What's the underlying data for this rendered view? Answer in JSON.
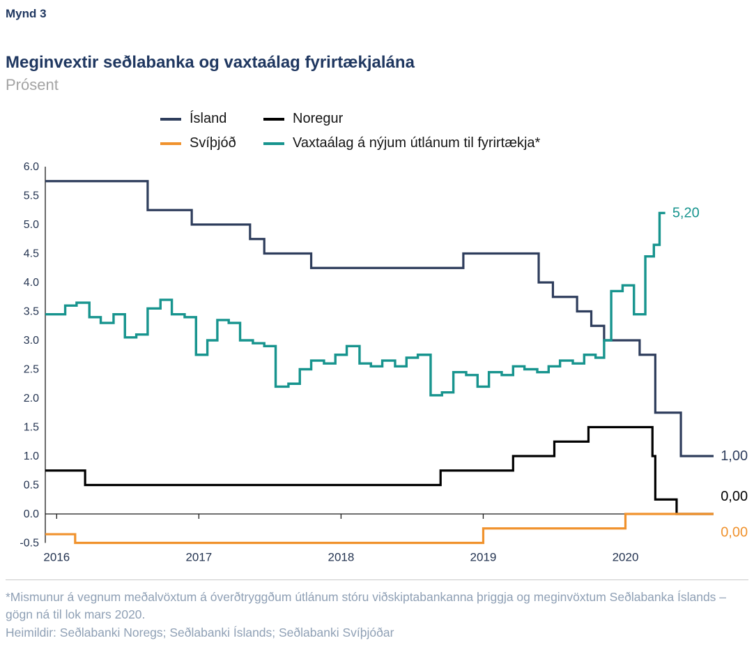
{
  "figure": {
    "number": "Mynd 3",
    "title": "Meginvextir seðlabanka og vaxtaálag fyrirtækjalána",
    "subtitle": "Prósent"
  },
  "footnote": "*Mismunur á vegnum meðalvöxtum á óverðtryggðum útlánum stóru viðskiptabankanna þriggja og meginvöxtum Seðlabanka Íslands – gögn ná til lok mars 2020.",
  "sources": "Heimildir: Seðlabanki Noregs; Seðlabanki Íslands; Seðlabanki Svíþjóðar",
  "chart_data": {
    "type": "line",
    "step": true,
    "title": "Meginvextir seðlabanka og vaxtaálag fyrirtækjalána",
    "ylabel": "Prósent",
    "xlabel": "",
    "grid": false,
    "legend_position": "top",
    "xlim": [
      2015.92,
      2020.62
    ],
    "ylim": [
      -0.5,
      6.0
    ],
    "x_ticks": [
      2016,
      2017,
      2018,
      2019,
      2020
    ],
    "y_ticks": [
      6.0,
      5.5,
      5.0,
      4.5,
      4.0,
      3.5,
      3.0,
      2.5,
      2.0,
      1.5,
      1.0,
      0.5,
      0.0,
      -0.5
    ],
    "y_tick_labels": [
      "6.0",
      "5.5",
      "5.0",
      "4.5",
      "4.0",
      "3.5",
      "3.0",
      "2.5",
      "2.0",
      "1.5",
      "1.0",
      "0.5",
      "0.0",
      "-0.5"
    ],
    "axis_color": "#1a1a1a",
    "series": [
      {
        "name": "Ísland",
        "color": "#2e3d5c",
        "width": 3.2,
        "end_label": {
          "text": "1,00",
          "x": 2020.67,
          "y": 1.0
        },
        "points": [
          [
            2015.92,
            5.75
          ],
          [
            2016.64,
            5.25
          ],
          [
            2016.95,
            5.0
          ],
          [
            2017.36,
            4.75
          ],
          [
            2017.46,
            4.5
          ],
          [
            2017.79,
            4.25
          ],
          [
            2018.86,
            4.5
          ],
          [
            2019.39,
            4.0
          ],
          [
            2019.49,
            3.75
          ],
          [
            2019.66,
            3.5
          ],
          [
            2019.76,
            3.25
          ],
          [
            2019.85,
            3.0
          ],
          [
            2020.1,
            2.75
          ],
          [
            2020.21,
            1.75
          ],
          [
            2020.39,
            1.0
          ],
          [
            2020.62,
            1.0
          ]
        ]
      },
      {
        "name": "Noregur",
        "color": "#000000",
        "width": 3.2,
        "end_label": {
          "text": "0,00",
          "x": 2020.67,
          "y": 0.3
        },
        "points": [
          [
            2015.92,
            0.75
          ],
          [
            2016.2,
            0.5
          ],
          [
            2018.7,
            0.75
          ],
          [
            2019.21,
            1.0
          ],
          [
            2019.5,
            1.25
          ],
          [
            2019.74,
            1.5
          ],
          [
            2020.19,
            1.0
          ],
          [
            2020.21,
            0.25
          ],
          [
            2020.36,
            0.0
          ],
          [
            2020.62,
            0.0
          ]
        ]
      },
      {
        "name": "Svíþjóð",
        "color": "#f0922d",
        "width": 3.2,
        "end_label": {
          "text": "0,00",
          "x": 2020.67,
          "y": -0.32
        },
        "points": [
          [
            2015.92,
            -0.35
          ],
          [
            2016.13,
            -0.5
          ],
          [
            2019.0,
            -0.25
          ],
          [
            2020.0,
            0.0
          ],
          [
            2020.62,
            0.0
          ]
        ]
      },
      {
        "name": "Vaxtaálag á nýjum útlánum til fyrirtækja*",
        "color": "#17948e",
        "width": 3.4,
        "end_label": {
          "text": "5,20",
          "x": 2020.33,
          "y": 5.2
        },
        "points": [
          [
            2015.92,
            3.45
          ],
          [
            2016.06,
            3.6
          ],
          [
            2016.14,
            3.65
          ],
          [
            2016.23,
            3.4
          ],
          [
            2016.31,
            3.3
          ],
          [
            2016.4,
            3.45
          ],
          [
            2016.48,
            3.05
          ],
          [
            2016.56,
            3.1
          ],
          [
            2016.64,
            3.55
          ],
          [
            2016.73,
            3.7
          ],
          [
            2016.81,
            3.45
          ],
          [
            2016.9,
            3.4
          ],
          [
            2016.98,
            2.75
          ],
          [
            2017.06,
            3.0
          ],
          [
            2017.13,
            3.35
          ],
          [
            2017.21,
            3.3
          ],
          [
            2017.29,
            3.0
          ],
          [
            2017.38,
            2.95
          ],
          [
            2017.46,
            2.9
          ],
          [
            2017.54,
            2.2
          ],
          [
            2017.63,
            2.25
          ],
          [
            2017.71,
            2.5
          ],
          [
            2017.79,
            2.65
          ],
          [
            2017.88,
            2.6
          ],
          [
            2017.96,
            2.75
          ],
          [
            2018.04,
            2.9
          ],
          [
            2018.13,
            2.6
          ],
          [
            2018.21,
            2.55
          ],
          [
            2018.29,
            2.65
          ],
          [
            2018.38,
            2.55
          ],
          [
            2018.46,
            2.7
          ],
          [
            2018.54,
            2.75
          ],
          [
            2018.63,
            2.05
          ],
          [
            2018.71,
            2.1
          ],
          [
            2018.79,
            2.45
          ],
          [
            2018.88,
            2.4
          ],
          [
            2018.96,
            2.2
          ],
          [
            2019.04,
            2.45
          ],
          [
            2019.13,
            2.4
          ],
          [
            2019.21,
            2.55
          ],
          [
            2019.29,
            2.5
          ],
          [
            2019.38,
            2.45
          ],
          [
            2019.46,
            2.55
          ],
          [
            2019.54,
            2.65
          ],
          [
            2019.63,
            2.6
          ],
          [
            2019.71,
            2.75
          ],
          [
            2019.79,
            2.7
          ],
          [
            2019.85,
            3.0
          ],
          [
            2019.9,
            3.85
          ],
          [
            2019.98,
            3.95
          ],
          [
            2020.06,
            3.45
          ],
          [
            2020.14,
            4.45
          ],
          [
            2020.2,
            4.65
          ],
          [
            2020.24,
            5.2
          ],
          [
            2020.28,
            5.2
          ]
        ]
      }
    ]
  }
}
